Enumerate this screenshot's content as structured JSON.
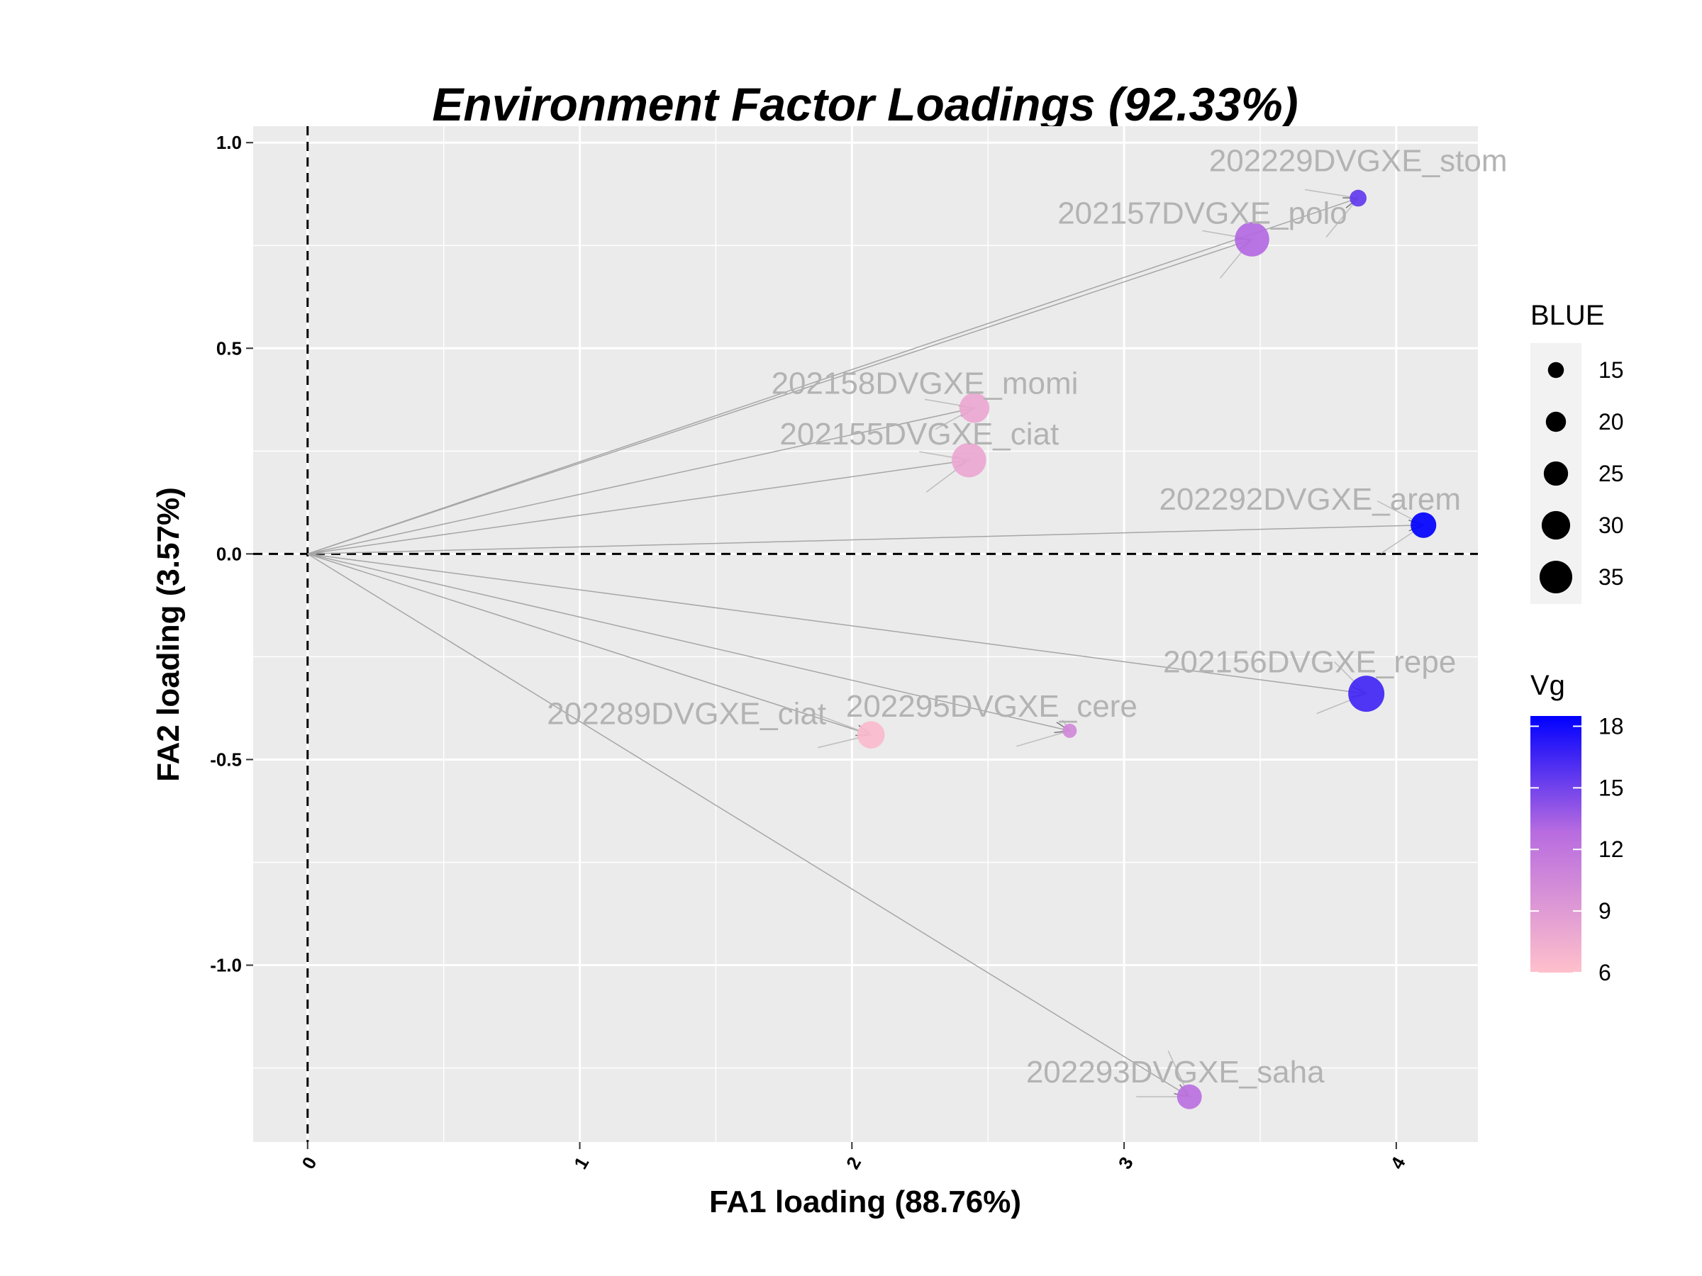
{
  "chart_data": {
    "type": "scatter",
    "title": "Environment Factor Loadings (92.33%)",
    "xlabel": "FA1 loading (88.76%)",
    "ylabel": "FA2 loading (3.57%)",
    "xlim": [
      -0.2,
      4.3
    ],
    "ylim": [
      -1.43,
      1.04
    ],
    "x_ticks": [
      0,
      1,
      2,
      3,
      4
    ],
    "x_tick_labels": [
      "0",
      "1",
      "2",
      "3",
      "4"
    ],
    "y_ticks": [
      1.0,
      0.5,
      0.0,
      -0.5,
      -1.0
    ],
    "y_tick_labels": [
      "1.0",
      "0.5",
      "0.0",
      "-0.5",
      "-1.0"
    ],
    "grid": true,
    "reference_lines": {
      "x": 0,
      "y": 0,
      "style": "dashed"
    },
    "points": [
      {
        "name": "202229DVGXE_stom",
        "x": 3.86,
        "y": 0.865,
        "blue": 15,
        "vg": 15.5
      },
      {
        "name": "202157DVGXE_polo",
        "x": 3.47,
        "y": 0.765,
        "blue": 35,
        "vg": 13.0
      },
      {
        "name": "202158DVGXE_momi",
        "x": 2.45,
        "y": 0.355,
        "blue": 30,
        "vg": 8.0
      },
      {
        "name": "202155DVGXE_ciat",
        "x": 2.43,
        "y": 0.228,
        "blue": 35,
        "vg": 8.0
      },
      {
        "name": "202292DVGXE_arem",
        "x": 4.1,
        "y": 0.07,
        "blue": 25,
        "vg": 18.5
      },
      {
        "name": "202156DVGXE_repe",
        "x": 3.89,
        "y": -0.34,
        "blue": 37,
        "vg": 16.5
      },
      {
        "name": "202289DVGXE_ciat",
        "x": 2.07,
        "y": -0.44,
        "blue": 27,
        "vg": 6.5
      },
      {
        "name": "202295DVGXE_cere",
        "x": 2.8,
        "y": -0.43,
        "blue": 12,
        "vg": 10.5
      },
      {
        "name": "202293DVGXE_saha",
        "x": 3.24,
        "y": -1.32,
        "blue": 24,
        "vg": 12.5
      }
    ],
    "legend_size": {
      "title": "BLUE",
      "values": [
        15,
        20,
        25,
        30,
        35
      ],
      "labels": [
        "15",
        "20",
        "25",
        "30",
        "35"
      ],
      "placement": "right"
    },
    "legend_color": {
      "title": "Vg",
      "ticks": [
        18,
        15,
        12,
        9,
        6
      ],
      "labels": [
        "18",
        "15",
        "12",
        "9",
        "6"
      ],
      "range": [
        6,
        18.5
      ],
      "color_low": "#ffc0cb",
      "color_mid": "#b76be0",
      "color_high": "#0000ff",
      "placement": "right"
    },
    "colors": {
      "panel_background": "#ebebeb",
      "grid_line": "#ffffff",
      "arrow": "#a6a6a6",
      "label": "#b3b3b3"
    }
  }
}
